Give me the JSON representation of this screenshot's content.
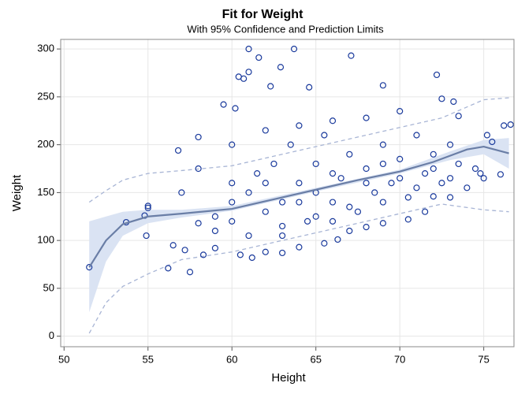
{
  "chart_data": {
    "type": "scatter",
    "title": "Fit for Weight",
    "subtitle": "With 95% Confidence and Prediction Limits",
    "x_label": "Height",
    "y_label": "Weight",
    "xlim": [
      49.8,
      76.8
    ],
    "ylim": [
      -11,
      310
    ],
    "xticks": [
      50,
      55,
      60,
      65,
      70,
      75
    ],
    "yticks": [
      0,
      50,
      100,
      150,
      200,
      250,
      300
    ],
    "grid": true,
    "points": {
      "color": "#1a3a9c",
      "x": [
        51.5,
        53.7,
        54.8,
        54.9,
        55,
        55,
        56.2,
        56.8,
        57.5,
        58,
        59.5,
        60.2,
        60.4,
        60.7,
        61,
        61,
        61.6,
        62.3,
        62.9,
        63.7,
        64.6,
        67.1,
        69,
        72.2,
        72.5,
        73.2,
        73.5,
        74.5,
        75.2,
        75.5,
        76,
        76.2,
        76.6,
        74.8,
        75,
        56.5,
        57.2,
        58.3,
        59,
        60.5,
        61.2,
        62,
        63,
        64,
        65.5,
        66.3,
        67,
        68,
        69,
        70.5,
        71.5,
        72,
        73,
        74,
        58,
        59,
        60,
        60,
        61,
        61.5,
        62,
        62.5,
        63,
        63.5,
        64,
        64.5,
        65,
        65,
        65.5,
        66,
        66.5,
        67,
        67.5,
        68,
        68.5,
        69,
        69.5,
        70,
        70.5,
        71,
        71.5,
        72,
        72.5,
        73,
        73.5,
        70,
        68,
        66,
        64,
        62,
        60,
        58,
        57,
        59,
        61,
        63,
        65,
        67,
        69,
        71,
        73,
        60,
        62,
        64,
        66,
        68,
        70,
        72,
        63,
        66,
        69
      ],
      "y": [
        72,
        119,
        126,
        105,
        134,
        136,
        71,
        194,
        67,
        208,
        242,
        238,
        271,
        269,
        300,
        276,
        291,
        261,
        281,
        300,
        260,
        293,
        262,
        273,
        248,
        245,
        230,
        175,
        210,
        203,
        169,
        220,
        221,
        170,
        165,
        95,
        90,
        85,
        92,
        85,
        82,
        88,
        87,
        93,
        97,
        101,
        110,
        114,
        118,
        122,
        130,
        146,
        145,
        155,
        118,
        125,
        140,
        160,
        150,
        170,
        130,
        180,
        140,
        200,
        160,
        120,
        150,
        180,
        210,
        140,
        165,
        190,
        130,
        175,
        150,
        200,
        160,
        185,
        145,
        210,
        170,
        190,
        160,
        200,
        180,
        235,
        228,
        225,
        220,
        215,
        200,
        175,
        150,
        110,
        105,
        115,
        125,
        135,
        140,
        155,
        165,
        120,
        160,
        140,
        170,
        160,
        165,
        175,
        105,
        120,
        180
      ]
    },
    "fit": {
      "color": "#6a7ea6",
      "x": [
        51.5,
        52.5,
        53.5,
        55,
        57,
        60,
        62.5,
        65,
        67.5,
        70,
        72,
        74,
        75,
        76.5
      ],
      "y": [
        72,
        100,
        117,
        125,
        128,
        133,
        143,
        153,
        163,
        172,
        182,
        195,
        198,
        191
      ]
    },
    "confidence": {
      "color": "#dae3f3",
      "x": [
        51.5,
        52.5,
        53.5,
        55,
        57,
        60,
        65,
        70,
        73,
        75,
        76.5
      ],
      "lower": [
        25,
        78,
        105,
        118,
        124,
        131,
        151,
        170,
        184,
        190,
        175
      ],
      "upper": [
        120,
        125,
        130,
        132,
        132,
        136,
        155,
        174,
        193,
        205,
        207
      ]
    },
    "prediction": {
      "color": "#a8b5d5",
      "x": [
        51.5,
        52.5,
        53.5,
        55,
        57,
        60,
        65,
        70,
        72.5,
        75,
        76.5
      ],
      "lower": [
        3,
        35,
        52,
        65,
        80,
        88,
        108,
        128,
        138,
        132,
        130
      ],
      "upper": [
        140,
        152,
        163,
        170,
        173,
        178,
        198,
        218,
        228,
        247,
        249
      ]
    }
  }
}
